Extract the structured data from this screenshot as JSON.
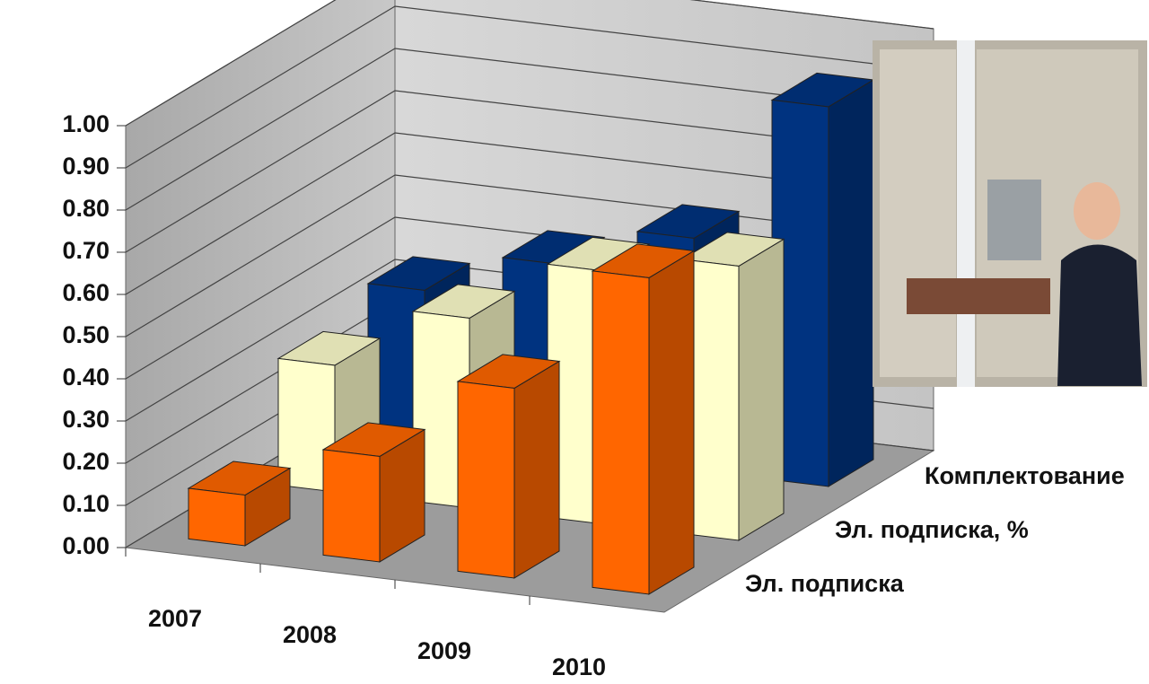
{
  "chart_data": {
    "type": "bar3d",
    "categories": [
      "2007",
      "2008",
      "2009",
      "2010"
    ],
    "series": [
      {
        "name": "Эл. подписка",
        "color": "#ff6600",
        "values": [
          0.12,
          0.25,
          0.45,
          0.75
        ]
      },
      {
        "name": "Эл. подписка, %",
        "color": "#ffffcc",
        "values": [
          0.3,
          0.45,
          0.6,
          0.65
        ]
      },
      {
        "name": "Комплектование",
        "color": "#003380",
        "values": [
          0.35,
          0.45,
          0.55,
          0.9
        ]
      }
    ],
    "ylim": [
      0,
      1
    ],
    "yticks": [
      {
        "value": 0,
        "label": "0.00"
      },
      {
        "value": 0.1,
        "label": "0.10"
      },
      {
        "value": 0.2,
        "label": "0.20"
      },
      {
        "value": 0.3,
        "label": "0.30"
      },
      {
        "value": 0.4,
        "label": "0.40"
      },
      {
        "value": 0.5,
        "label": "0.50"
      },
      {
        "value": 0.6,
        "label": "0.60"
      },
      {
        "value": 0.7,
        "label": "0.70"
      },
      {
        "value": 0.8,
        "label": "0.80"
      },
      {
        "value": 0.9,
        "label": "0.90"
      },
      {
        "value": 1,
        "label": "1.00"
      }
    ],
    "grid": true
  }
}
